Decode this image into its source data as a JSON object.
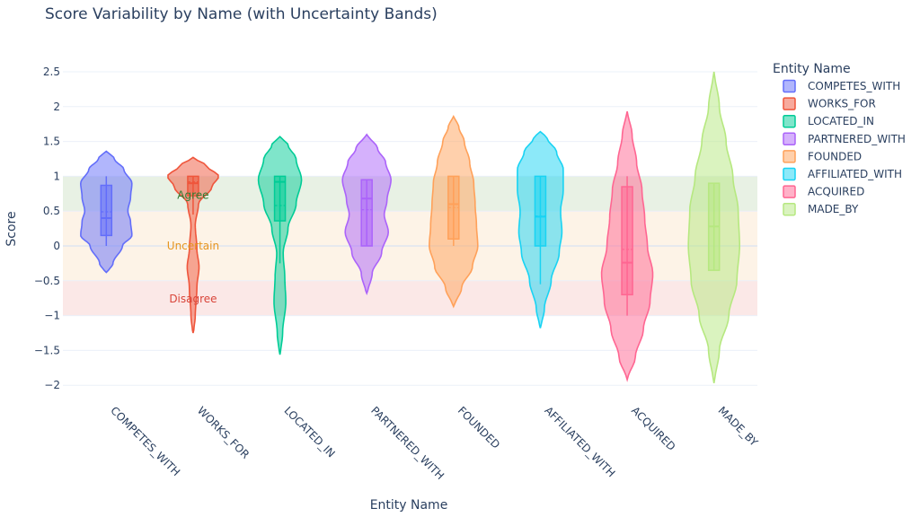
{
  "chart_data": {
    "type": "violin",
    "title": "Score Variability by Name (with Uncertainty Bands)",
    "xlabel": "Entity Name",
    "ylabel": "Score",
    "ylim": [
      -2.2,
      2.8
    ],
    "yticks": [
      2.5,
      2,
      1.5,
      1,
      0.5,
      0,
      -0.5,
      -1,
      -1.5,
      -2
    ],
    "ytick_labels": [
      "2.5",
      "2",
      "1.5",
      "1",
      "0.5",
      "0",
      "−0.5",
      "−1",
      "−1.5",
      "−2"
    ],
    "grid": true,
    "legend": {
      "title": "Entity Name",
      "placement": "right"
    },
    "bands": [
      {
        "label": "Agree",
        "y0": 0.5,
        "y1": 1.0,
        "fill": "#e8f1e4",
        "text_color": "#2e7d32",
        "label_y": 0.73
      },
      {
        "label": "Uncertain",
        "y0": -0.5,
        "y1": 0.5,
        "fill": "#fdf3e7",
        "text_color": "#e69520",
        "label_y": 0.0
      },
      {
        "label": "Disagree",
        "y0": -1.0,
        "y1": -0.5,
        "fill": "#fbe8e7",
        "text_color": "#d9453a",
        "label_y": -0.76
      }
    ],
    "band_label_category": "WORKS_FOR",
    "series": [
      {
        "name": "COMPETES_WITH",
        "color": "#636efa",
        "range": [
          -0.38,
          1.36
        ],
        "box": {
          "q1": 0.15,
          "median": 0.4,
          "q3": 0.87,
          "mean": 0.49,
          "whisker_low": 0.0,
          "whisker_high": 1.0
        },
        "density": [
          [
            -0.38,
            0.05
          ],
          [
            -0.25,
            0.25
          ],
          [
            0.0,
            0.6
          ],
          [
            0.15,
            0.95
          ],
          [
            0.35,
            0.9
          ],
          [
            0.5,
            0.8
          ],
          [
            0.7,
            0.9
          ],
          [
            0.9,
            0.95
          ],
          [
            1.1,
            0.65
          ],
          [
            1.25,
            0.3
          ],
          [
            1.36,
            0.05
          ]
        ]
      },
      {
        "name": "WORKS_FOR",
        "color": "#ef553b",
        "range": [
          -1.25,
          1.27
        ],
        "box": {
          "q1": 0.72,
          "median": 0.9,
          "q3": 1.0,
          "mean": 0.92,
          "whisker_low": 0.45,
          "whisker_high": 1.0
        },
        "density": [
          [
            -1.25,
            0.02
          ],
          [
            -1.0,
            0.08
          ],
          [
            -0.6,
            0.14
          ],
          [
            -0.3,
            0.22
          ],
          [
            -0.05,
            0.14
          ],
          [
            0.3,
            0.08
          ],
          [
            0.6,
            0.2
          ],
          [
            0.85,
            0.7
          ],
          [
            1.0,
            0.95
          ],
          [
            1.15,
            0.5
          ],
          [
            1.27,
            0.03
          ]
        ]
      },
      {
        "name": "LOCATED_IN",
        "color": "#00cc96",
        "range": [
          -1.56,
          1.57
        ],
        "box": {
          "q1": 0.36,
          "median": 0.92,
          "q3": 1.0,
          "mean": 0.58,
          "whisker_low": -0.25,
          "whisker_high": 1.0
        },
        "density": [
          [
            -1.56,
            0.02
          ],
          [
            -1.25,
            0.1
          ],
          [
            -0.8,
            0.22
          ],
          [
            -0.45,
            0.18
          ],
          [
            -0.1,
            0.12
          ],
          [
            0.25,
            0.3
          ],
          [
            0.6,
            0.6
          ],
          [
            0.95,
            0.8
          ],
          [
            1.25,
            0.6
          ],
          [
            1.45,
            0.3
          ],
          [
            1.57,
            0.03
          ]
        ]
      },
      {
        "name": "PARTNERED_WITH",
        "color": "#ab63fa",
        "range": [
          -0.68,
          1.6
        ],
        "box": {
          "q1": 0.0,
          "median": 0.68,
          "q3": 0.95,
          "mean": 0.52,
          "whisker_low": 0.0,
          "whisker_high": 0.95
        },
        "density": [
          [
            -0.68,
            0.03
          ],
          [
            -0.4,
            0.2
          ],
          [
            -0.1,
            0.55
          ],
          [
            0.2,
            0.8
          ],
          [
            0.45,
            0.65
          ],
          [
            0.65,
            0.75
          ],
          [
            0.95,
            0.9
          ],
          [
            1.2,
            0.7
          ],
          [
            1.4,
            0.4
          ],
          [
            1.6,
            0.04
          ]
        ]
      },
      {
        "name": "FOUNDED",
        "color": "#ffa15a",
        "range": [
          -0.87,
          1.86
        ],
        "box": {
          "q1": 0.1,
          "median": 0.6,
          "q3": 1.0,
          "mean": 0.55,
          "whisker_low": 0.0,
          "whisker_high": 1.0
        },
        "density": [
          [
            -0.87,
            0.03
          ],
          [
            -0.6,
            0.3
          ],
          [
            -0.3,
            0.7
          ],
          [
            0.0,
            0.9
          ],
          [
            0.3,
            0.85
          ],
          [
            0.6,
            0.8
          ],
          [
            0.9,
            0.75
          ],
          [
            1.2,
            0.6
          ],
          [
            1.5,
            0.4
          ],
          [
            1.7,
            0.2
          ],
          [
            1.86,
            0.03
          ]
        ]
      },
      {
        "name": "AFFILIATED_WITH",
        "color": "#19d3f3",
        "range": [
          -1.18,
          1.64
        ],
        "box": {
          "q1": 0.0,
          "median": 0.42,
          "q3": 1.0,
          "mean": 0.43,
          "whisker_low": -0.55,
          "whisker_high": 1.0
        },
        "density": [
          [
            -1.18,
            0.02
          ],
          [
            -0.9,
            0.15
          ],
          [
            -0.5,
            0.4
          ],
          [
            -0.1,
            0.7
          ],
          [
            0.2,
            0.8
          ],
          [
            0.5,
            0.75
          ],
          [
            0.8,
            0.85
          ],
          [
            1.1,
            0.85
          ],
          [
            1.35,
            0.6
          ],
          [
            1.55,
            0.25
          ],
          [
            1.64,
            0.03
          ]
        ]
      },
      {
        "name": "ACQUIRED",
        "color": "#ff6692",
        "range": [
          -1.92,
          1.93
        ],
        "box": {
          "q1": -0.7,
          "median": -0.24,
          "q3": 0.85,
          "mean": -0.05,
          "whisker_low": -1.0,
          "whisker_high": 1.0
        },
        "density": [
          [
            -1.92,
            0.02
          ],
          [
            -1.6,
            0.3
          ],
          [
            -1.2,
            0.6
          ],
          [
            -0.8,
            0.85
          ],
          [
            -0.4,
            0.95
          ],
          [
            0.0,
            0.75
          ],
          [
            0.4,
            0.65
          ],
          [
            0.8,
            0.55
          ],
          [
            1.2,
            0.35
          ],
          [
            1.6,
            0.18
          ],
          [
            1.93,
            0.02
          ]
        ]
      },
      {
        "name": "MADE_BY",
        "color": "#b6e880",
        "range": [
          -1.97,
          2.5
        ],
        "box": {
          "q1": -0.35,
          "median": 0.28,
          "q3": 0.9,
          "mean": 0.28,
          "whisker_low": -0.35,
          "whisker_high": 0.9
        },
        "density": [
          [
            -1.97,
            0.02
          ],
          [
            -1.5,
            0.2
          ],
          [
            -1.0,
            0.55
          ],
          [
            -0.5,
            0.85
          ],
          [
            0.0,
            0.95
          ],
          [
            0.5,
            0.9
          ],
          [
            1.0,
            0.7
          ],
          [
            1.5,
            0.45
          ],
          [
            2.0,
            0.2
          ],
          [
            2.5,
            0.02
          ]
        ]
      }
    ]
  }
}
